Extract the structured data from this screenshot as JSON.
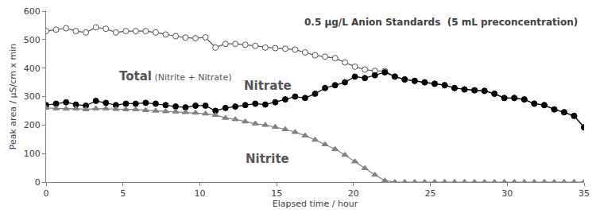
{
  "chart_data": {
    "type": "line",
    "title": "0.5 µg/L Anion Standards  (5 mL preconcentration)",
    "x_label": "Elapsed time / hour",
    "y_label": "Peak area / µS/cm x min",
    "x": [
      0,
      0.65,
      1.3,
      1.94,
      2.59,
      3.24,
      3.89,
      4.54,
      5.19,
      5.83,
      6.48,
      7.13,
      7.78,
      8.43,
      9.07,
      9.72,
      10.37,
      11.02,
      11.67,
      12.31,
      12.96,
      13.61,
      14.26,
      14.91,
      15.56,
      16.2,
      16.85,
      17.5,
      18.15,
      18.8,
      19.44,
      20.09,
      20.74,
      21.39,
      22.04,
      22.69,
      23.33,
      23.98,
      24.63,
      25.28,
      25.93,
      26.57,
      27.22,
      27.87,
      28.52,
      29.17,
      29.81,
      30.46,
      31.11,
      31.76,
      32.41,
      33.06,
      33.7,
      34.35,
      35
    ],
    "series": [
      {
        "name": "Total (Nitrite + Nitrate)",
        "color": "#555555",
        "marker": "open_circle",
        "values": [
          530,
          535,
          540,
          530,
          525,
          543,
          538,
          525,
          530,
          530,
          530,
          525,
          518,
          512,
          507,
          505,
          508,
          472,
          485,
          485,
          482,
          478,
          472,
          470,
          468,
          465,
          455,
          445,
          440,
          435,
          420,
          405,
          395,
          390,
          390,
          370,
          360,
          355,
          350,
          345,
          340,
          330,
          325,
          322,
          320,
          310,
          295,
          295,
          290,
          275,
          270,
          255,
          245,
          232,
          192
        ]
      },
      {
        "name": "Nitrate",
        "color": "#000000",
        "marker": "circle",
        "values": [
          270,
          275,
          280,
          272,
          268,
          285,
          278,
          270,
          275,
          275,
          278,
          275,
          270,
          265,
          262,
          268,
          268,
          250,
          260,
          265,
          270,
          275,
          272,
          280,
          290,
          300,
          295,
          310,
          330,
          340,
          350,
          370,
          365,
          375,
          385,
          370,
          360,
          355,
          350,
          345,
          340,
          330,
          325,
          322,
          320,
          310,
          295,
          295,
          290,
          275,
          270,
          255,
          245,
          232,
          192
        ]
      },
      {
        "name": "Nitrite",
        "color": "#808080",
        "marker": "triangle",
        "values": [
          260,
          258,
          257,
          258,
          255,
          258,
          258,
          256,
          255,
          255,
          252,
          250,
          248,
          247,
          245,
          243,
          240,
          235,
          225,
          220,
          212,
          205,
          200,
          193,
          185,
          175,
          163,
          148,
          132,
          115,
          95,
          72,
          48,
          25,
          5,
          0,
          0,
          0,
          0,
          0,
          0,
          0,
          0,
          0,
          0,
          0,
          0,
          0,
          0,
          0,
          0,
          0,
          0,
          0,
          0
        ]
      }
    ],
    "xlim": [
      0,
      35
    ],
    "xticks": [
      0,
      5,
      10,
      15,
      20,
      25,
      30,
      35
    ],
    "ylim": [
      0,
      600
    ],
    "yticks": [
      0,
      100,
      200,
      300,
      400,
      500,
      600
    ],
    "grid": false
  }
}
